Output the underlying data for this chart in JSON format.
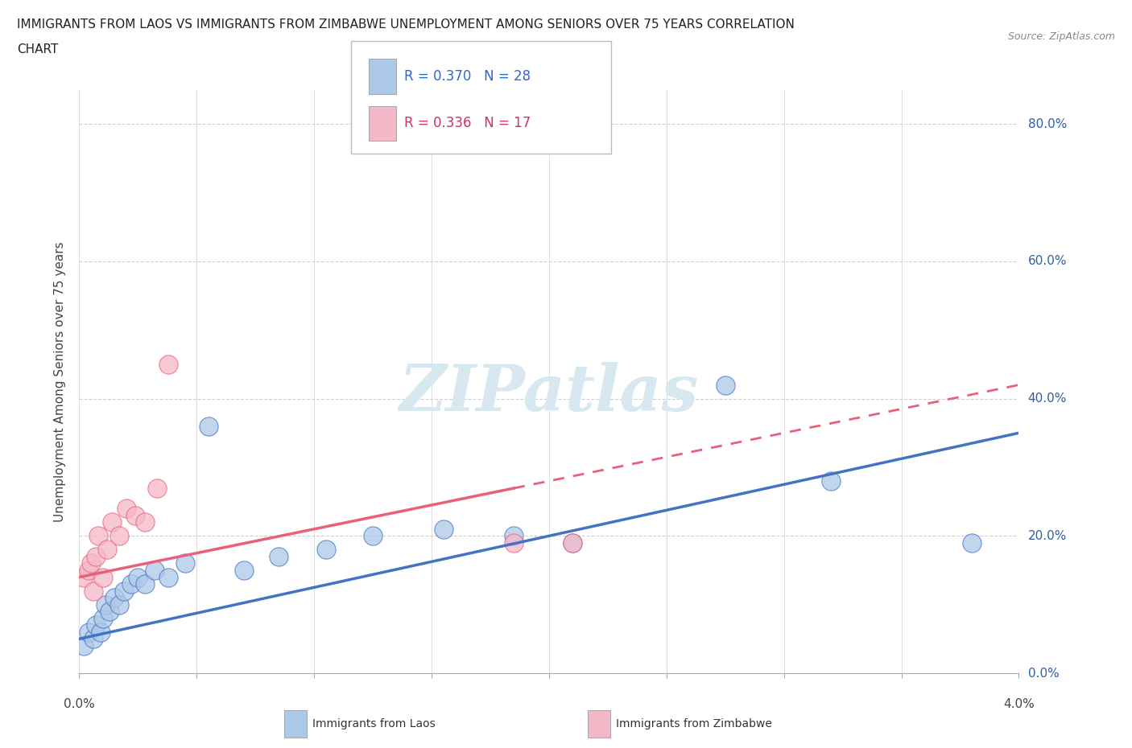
{
  "title_line1": "IMMIGRANTS FROM LAOS VS IMMIGRANTS FROM ZIMBABWE UNEMPLOYMENT AMONG SENIORS OVER 75 YEARS CORRELATION",
  "title_line2": "CHART",
  "source": "Source: ZipAtlas.com",
  "ylabel": "Unemployment Among Seniors over 75 years",
  "legend_laos": "Immigrants from Laos",
  "legend_zimbabwe": "Immigrants from Zimbabwe",
  "R_laos": 0.37,
  "N_laos": 28,
  "R_zimbabwe": 0.336,
  "N_zimbabwe": 17,
  "color_laos": "#adc9e8",
  "color_zimbabwe": "#f5b8c8",
  "color_laos_line": "#4472c4",
  "color_zimbabwe_line": "#e8607a",
  "xlim": [
    0.0,
    4.0
  ],
  "ylim": [
    0.0,
    85.0
  ],
  "ytick_vals": [
    0.0,
    20.0,
    40.0,
    60.0,
    80.0
  ],
  "laos_x": [
    0.02,
    0.04,
    0.06,
    0.07,
    0.09,
    0.1,
    0.11,
    0.13,
    0.15,
    0.17,
    0.19,
    0.22,
    0.25,
    0.28,
    0.32,
    0.38,
    0.45,
    0.55,
    0.7,
    0.85,
    1.05,
    1.25,
    1.55,
    1.85,
    2.1,
    2.75,
    3.2,
    3.8
  ],
  "laos_y": [
    4.0,
    6.0,
    5.0,
    7.0,
    6.0,
    8.0,
    10.0,
    9.0,
    11.0,
    10.0,
    12.0,
    13.0,
    14.0,
    13.0,
    15.0,
    14.0,
    16.0,
    36.0,
    15.0,
    17.0,
    18.0,
    20.0,
    21.0,
    20.0,
    19.0,
    42.0,
    28.0,
    19.0
  ],
  "zimbabwe_x": [
    0.02,
    0.04,
    0.05,
    0.06,
    0.07,
    0.08,
    0.1,
    0.12,
    0.14,
    0.17,
    0.2,
    0.24,
    0.28,
    0.33,
    0.38,
    1.85,
    2.1
  ],
  "zimbabwe_y": [
    14.0,
    15.0,
    16.0,
    12.0,
    17.0,
    20.0,
    14.0,
    18.0,
    22.0,
    20.0,
    24.0,
    23.0,
    22.0,
    27.0,
    45.0,
    19.0,
    19.0
  ],
  "laos_line_x0": 0.0,
  "laos_line_y0": 5.0,
  "laos_line_x1": 4.0,
  "laos_line_y1": 35.0,
  "zim_line_x0": 0.0,
  "zim_line_y0": 14.0,
  "zim_line_x1": 4.0,
  "zim_line_y1": 42.0,
  "zim_solid_end_x": 1.85,
  "bg_color": "#ffffff",
  "grid_color": "#d0d0d0",
  "watermark_text": "ZIPatlas",
  "watermark_color": "#d8e8f0",
  "title_fontsize": 11,
  "axis_label_fontsize": 11,
  "tick_fontsize": 11,
  "legend_fontsize": 12
}
